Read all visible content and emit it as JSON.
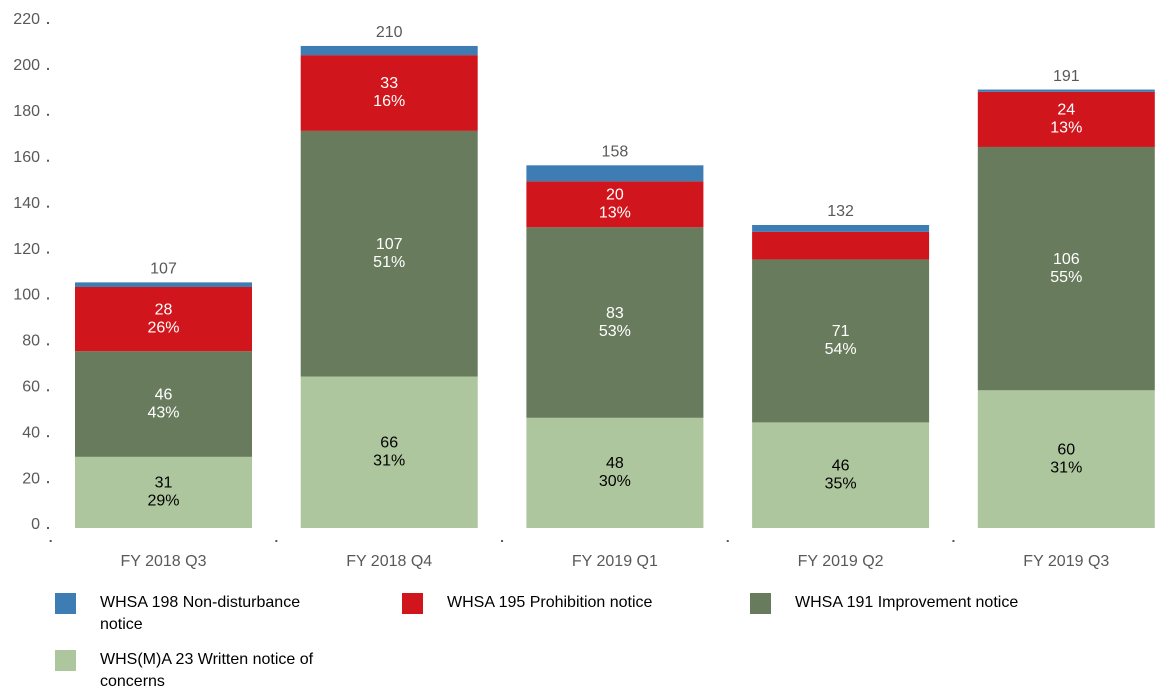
{
  "chart_data": {
    "type": "stacked_bar",
    "categories": [
      "FY 2018 Q3",
      "FY 2018 Q4",
      "FY 2019 Q1",
      "FY 2019 Q2",
      "FY 2019 Q3"
    ],
    "series": [
      {
        "name": "WHS(M)A 23 Written notice of concerns",
        "color": "#aec69e",
        "label_color": "#000000",
        "values": [
          31,
          66,
          48,
          46,
          60
        ],
        "share_labels": [
          "29%",
          "31%",
          "30%",
          "35%",
          "31%"
        ]
      },
      {
        "name": "WHSA 191 Improvement notice",
        "color": "#687b5c",
        "label_color": "#ffffff",
        "values": [
          46,
          107,
          83,
          71,
          106
        ],
        "share_labels": [
          "43%",
          "51%",
          "53%",
          "54%",
          "55%"
        ]
      },
      {
        "name": "WHSA 195 Prohibition notice",
        "color": "#d0151c",
        "label_color": "#ffffff",
        "values": [
          28,
          33,
          20,
          12,
          24
        ],
        "value_labels": [
          "28",
          "33",
          "20",
          null,
          "24"
        ],
        "share_labels": [
          "26%",
          "16%",
          "13%",
          null,
          "13%"
        ]
      },
      {
        "name": "WHSA 198 Non-disturbance notice",
        "color": "#3d7db3",
        "values": [
          2,
          4,
          7,
          3,
          1
        ]
      }
    ],
    "totals": [
      107,
      210,
      158,
      132,
      191
    ],
    "ylim": [
      0,
      220
    ],
    "yticks": [
      0,
      20,
      40,
      60,
      80,
      100,
      120,
      140,
      160,
      180,
      200,
      220
    ],
    "grid": false,
    "legend_order": [
      3,
      2,
      1,
      0
    ]
  }
}
